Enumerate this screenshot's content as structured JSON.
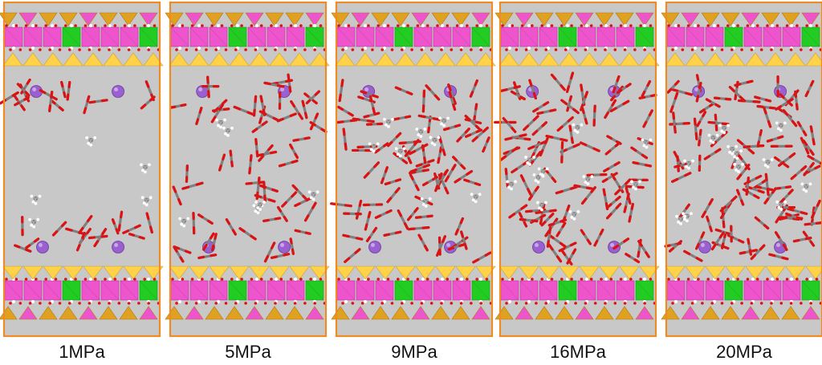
{
  "figure": {
    "panels": [
      {
        "label": "1MPa",
        "co2_count": 30,
        "ch4_count": 5
      },
      {
        "label": "5MPa",
        "co2_count": 60,
        "ch4_count": 6
      },
      {
        "label": "9MPa",
        "co2_count": 80,
        "ch4_count": 8
      },
      {
        "label": "16MPa",
        "co2_count": 90,
        "ch4_count": 10
      },
      {
        "label": "20MPa",
        "co2_count": 100,
        "ch4_count": 12
      }
    ],
    "colors": {
      "background": "#c8c8c8",
      "border": "#f08a24",
      "tetra_dark": "#e0a020",
      "tetra_light": "#ffd24a",
      "octahedron": "#ee55cc",
      "green_site": "#22cc22",
      "oxygen": "#dd1111",
      "carbon": "#808080",
      "hydrogen": "#ffffff",
      "cation": "#9a60d0"
    }
  }
}
